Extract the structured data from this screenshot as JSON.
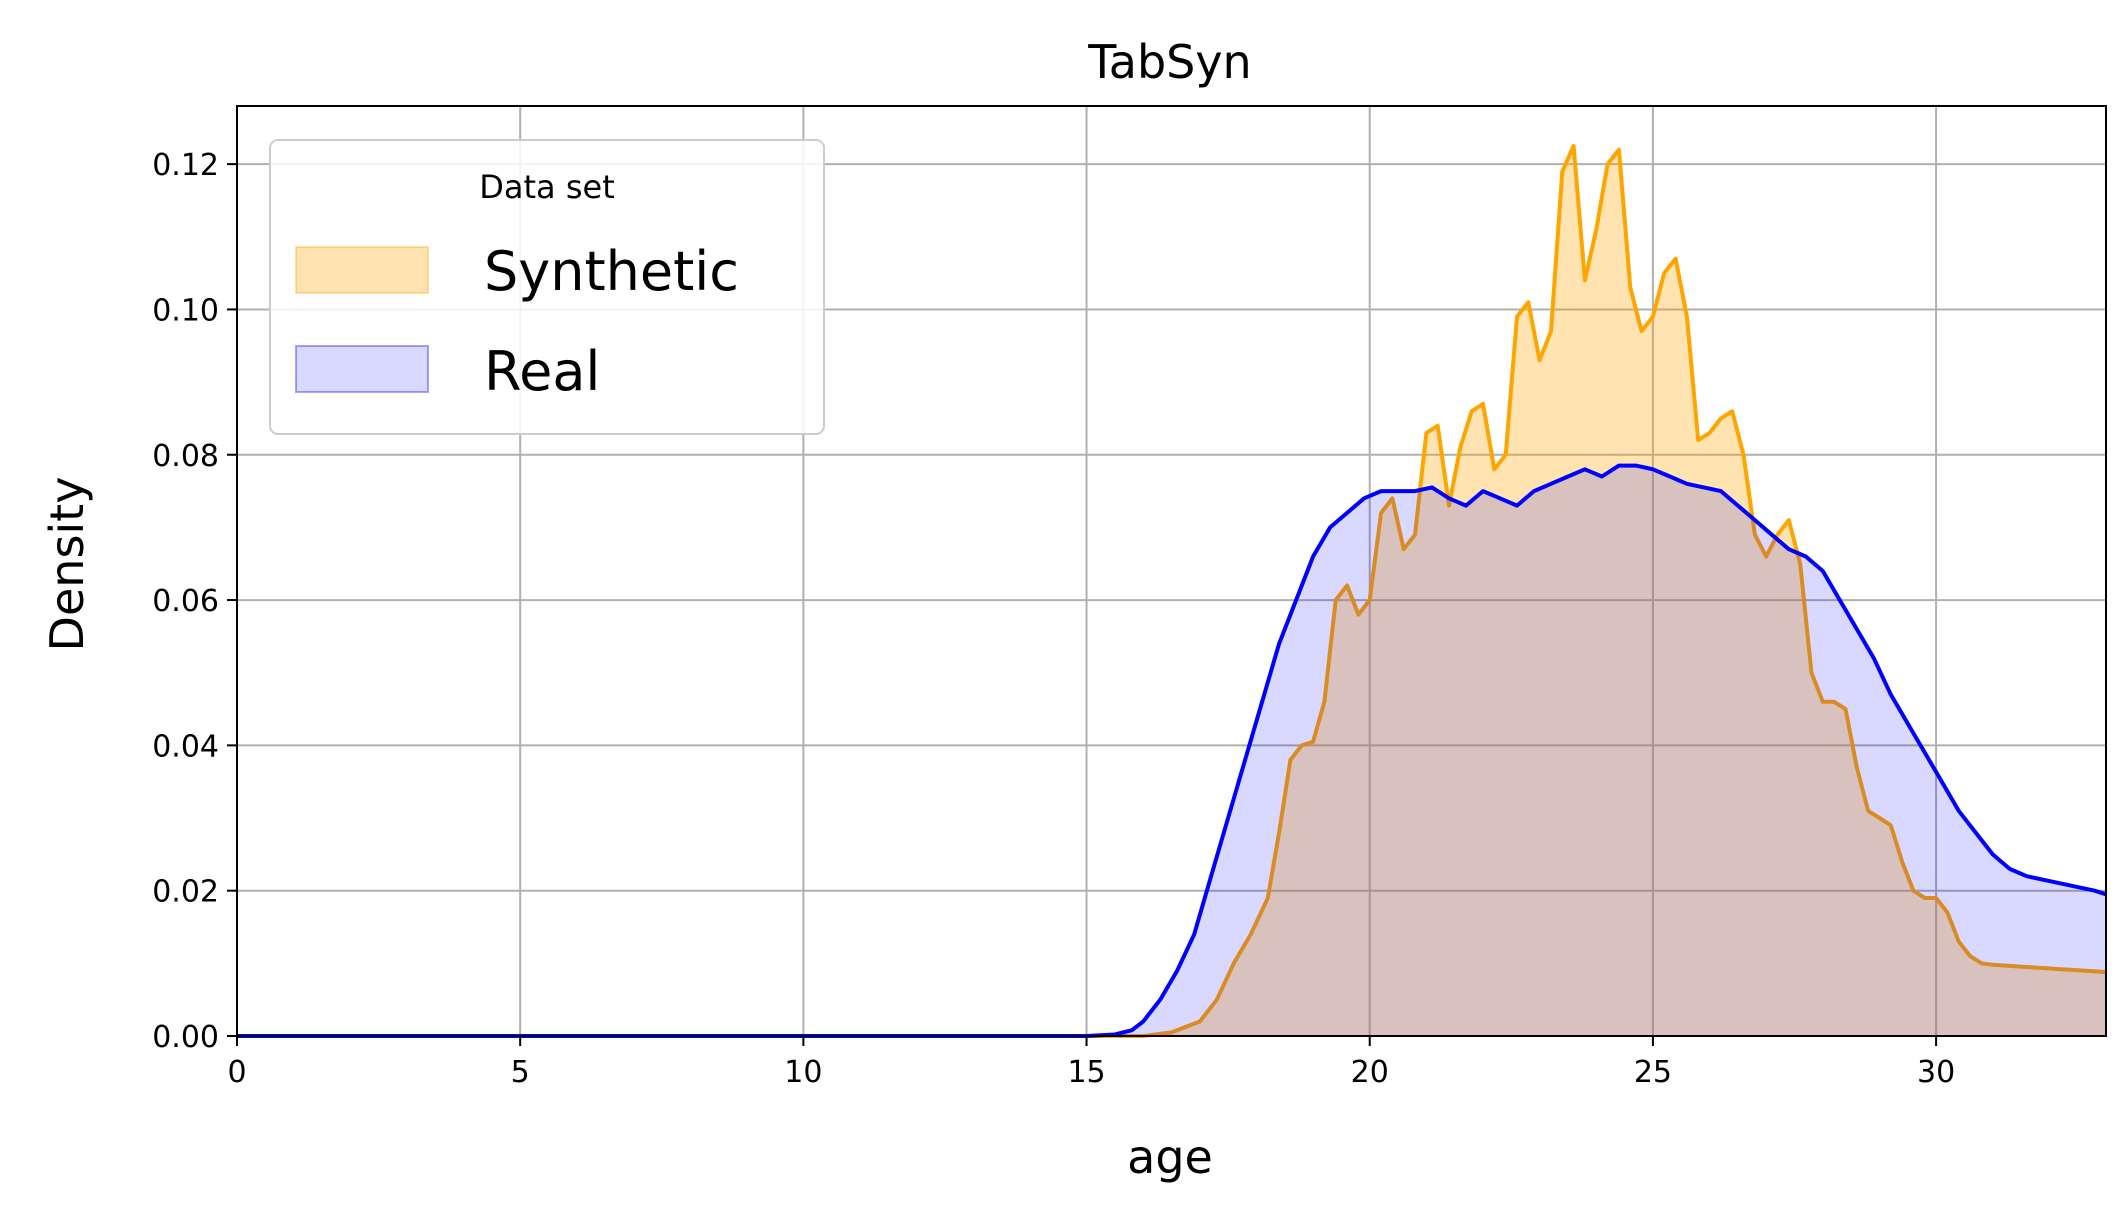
{
  "chart_data": {
    "type": "area",
    "title": "TabSyn",
    "xlabel": "age",
    "ylabel": "Density",
    "xlim": [
      0,
      33
    ],
    "ylim": [
      0,
      0.128
    ],
    "xticks": [
      0,
      5,
      10,
      15,
      20,
      25,
      30
    ],
    "yticks": [
      0.0,
      0.02,
      0.04,
      0.06,
      0.08,
      0.1,
      0.12
    ],
    "ytick_labels": [
      "0.00",
      "0.02",
      "0.04",
      "0.06",
      "0.08",
      "0.10",
      "0.12"
    ],
    "grid": true,
    "legend": {
      "title": "Data set",
      "position": "top-left"
    },
    "series": [
      {
        "name": "Synthetic",
        "color": "#FFA500",
        "fill": "#FFA500",
        "fill_opacity": 0.3,
        "x": [
          0,
          15,
          16,
          16.5,
          17,
          17.3,
          17.6,
          17.9,
          18.2,
          18.4,
          18.6,
          18.8,
          19.0,
          19.2,
          19.4,
          19.6,
          19.8,
          20.0,
          20.2,
          20.4,
          20.6,
          20.8,
          21.0,
          21.2,
          21.4,
          21.6,
          21.8,
          22.0,
          22.2,
          22.4,
          22.6,
          22.8,
          23.0,
          23.2,
          23.4,
          23.6,
          23.8,
          24.0,
          24.2,
          24.4,
          24.6,
          24.8,
          25.0,
          25.2,
          25.4,
          25.6,
          25.8,
          26.0,
          26.2,
          26.4,
          26.6,
          26.8,
          27.0,
          27.2,
          27.4,
          27.6,
          27.8,
          28.0,
          28.2,
          28.4,
          28.6,
          28.8,
          29.0,
          29.2,
          29.4,
          29.6,
          29.8,
          30.0,
          30.2,
          30.4,
          30.6,
          30.8,
          31.0,
          31.2,
          31.4,
          31.6,
          31.8,
          32.0,
          32.2,
          32.4,
          32.6,
          32.8,
          33.0
        ],
        "values": [
          0,
          0,
          0,
          0.0005,
          0.002,
          0.005,
          0.01,
          0.014,
          0.019,
          0.028,
          0.038,
          0.04,
          0.0405,
          0.046,
          0.06,
          0.062,
          0.058,
          0.06,
          0.072,
          0.074,
          0.067,
          0.069,
          0.083,
          0.084,
          0.073,
          0.081,
          0.086,
          0.087,
          0.078,
          0.08,
          0.099,
          0.101,
          0.093,
          0.097,
          0.119,
          0.1225,
          0.104,
          0.111,
          0.12,
          0.122,
          0.103,
          0.097,
          0.099,
          0.105,
          0.107,
          0.099,
          0.082,
          0.083,
          0.085,
          0.086,
          0.08,
          0.069,
          0.066,
          0.069,
          0.071,
          0.065,
          0.05,
          0.046,
          0.046,
          0.045,
          0.037,
          0.031,
          0.03,
          0.029,
          0.024,
          0.02,
          0.019,
          0.019,
          0.017,
          0.013,
          0.011,
          0.01,
          0.0098,
          0.0097,
          0.0096,
          0.0095,
          0.0094,
          0.0093,
          0.0092,
          0.0091,
          0.009,
          0.0089,
          0.0088
        ]
      },
      {
        "name": "Real",
        "color": "#0000FF",
        "fill": "#0000FF",
        "fill_opacity": 0.15,
        "x": [
          0,
          15,
          15.5,
          15.8,
          16.0,
          16.3,
          16.6,
          16.9,
          17.2,
          17.5,
          17.8,
          18.1,
          18.4,
          18.7,
          19.0,
          19.3,
          19.6,
          19.9,
          20.2,
          20.5,
          20.8,
          21.1,
          21.4,
          21.7,
          22.0,
          22.3,
          22.6,
          22.9,
          23.2,
          23.5,
          23.8,
          24.1,
          24.4,
          24.7,
          25.0,
          25.3,
          25.6,
          25.9,
          26.2,
          26.5,
          26.8,
          27.1,
          27.4,
          27.7,
          28.0,
          28.3,
          28.6,
          28.9,
          29.2,
          29.5,
          29.8,
          30.1,
          30.4,
          30.7,
          31.0,
          31.3,
          31.6,
          31.9,
          32.2,
          32.5,
          32.8,
          33.0
        ],
        "values": [
          0,
          0,
          0.0002,
          0.0008,
          0.002,
          0.005,
          0.009,
          0.014,
          0.022,
          0.03,
          0.038,
          0.046,
          0.054,
          0.06,
          0.066,
          0.07,
          0.072,
          0.074,
          0.075,
          0.075,
          0.075,
          0.0755,
          0.074,
          0.073,
          0.075,
          0.074,
          0.073,
          0.075,
          0.076,
          0.077,
          0.078,
          0.077,
          0.0785,
          0.0785,
          0.078,
          0.077,
          0.076,
          0.0755,
          0.075,
          0.073,
          0.071,
          0.069,
          0.067,
          0.066,
          0.064,
          0.06,
          0.056,
          0.052,
          0.047,
          0.043,
          0.039,
          0.035,
          0.031,
          0.028,
          0.025,
          0.023,
          0.022,
          0.0215,
          0.021,
          0.0205,
          0.02,
          0.0195
        ]
      }
    ]
  }
}
